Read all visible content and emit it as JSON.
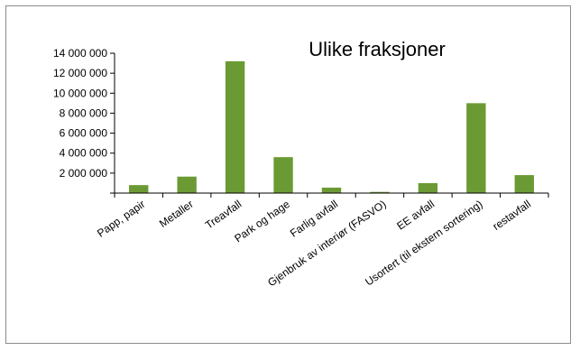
{
  "chart_data": {
    "type": "bar",
    "title": "Ulike fraksjoner",
    "xlabel": "",
    "ylabel": "",
    "categories": [
      "Papp, papir",
      "Metaller",
      "Treavfall",
      "Park og hage",
      "Farlig avfall",
      "Gjenbruk av interiør (FASVO)",
      "EE avfall",
      "Usortert (til ekstern sortering)",
      "restavfall"
    ],
    "values": [
      800000,
      1650000,
      13200000,
      3600000,
      550000,
      120000,
      1000000,
      9000000,
      1800000
    ],
    "ylim": [
      0,
      14000000
    ],
    "y_ticks": [
      0,
      2000000,
      4000000,
      6000000,
      8000000,
      10000000,
      12000000,
      14000000
    ],
    "y_tick_labels": [
      "",
      "2 000 000",
      "4 000 000",
      "6 000 000",
      "8 000 000",
      "10 000 000",
      "12 000 000",
      "14 000 000"
    ],
    "grid": false,
    "legend": "none",
    "bar_color": "#6b9a34"
  }
}
